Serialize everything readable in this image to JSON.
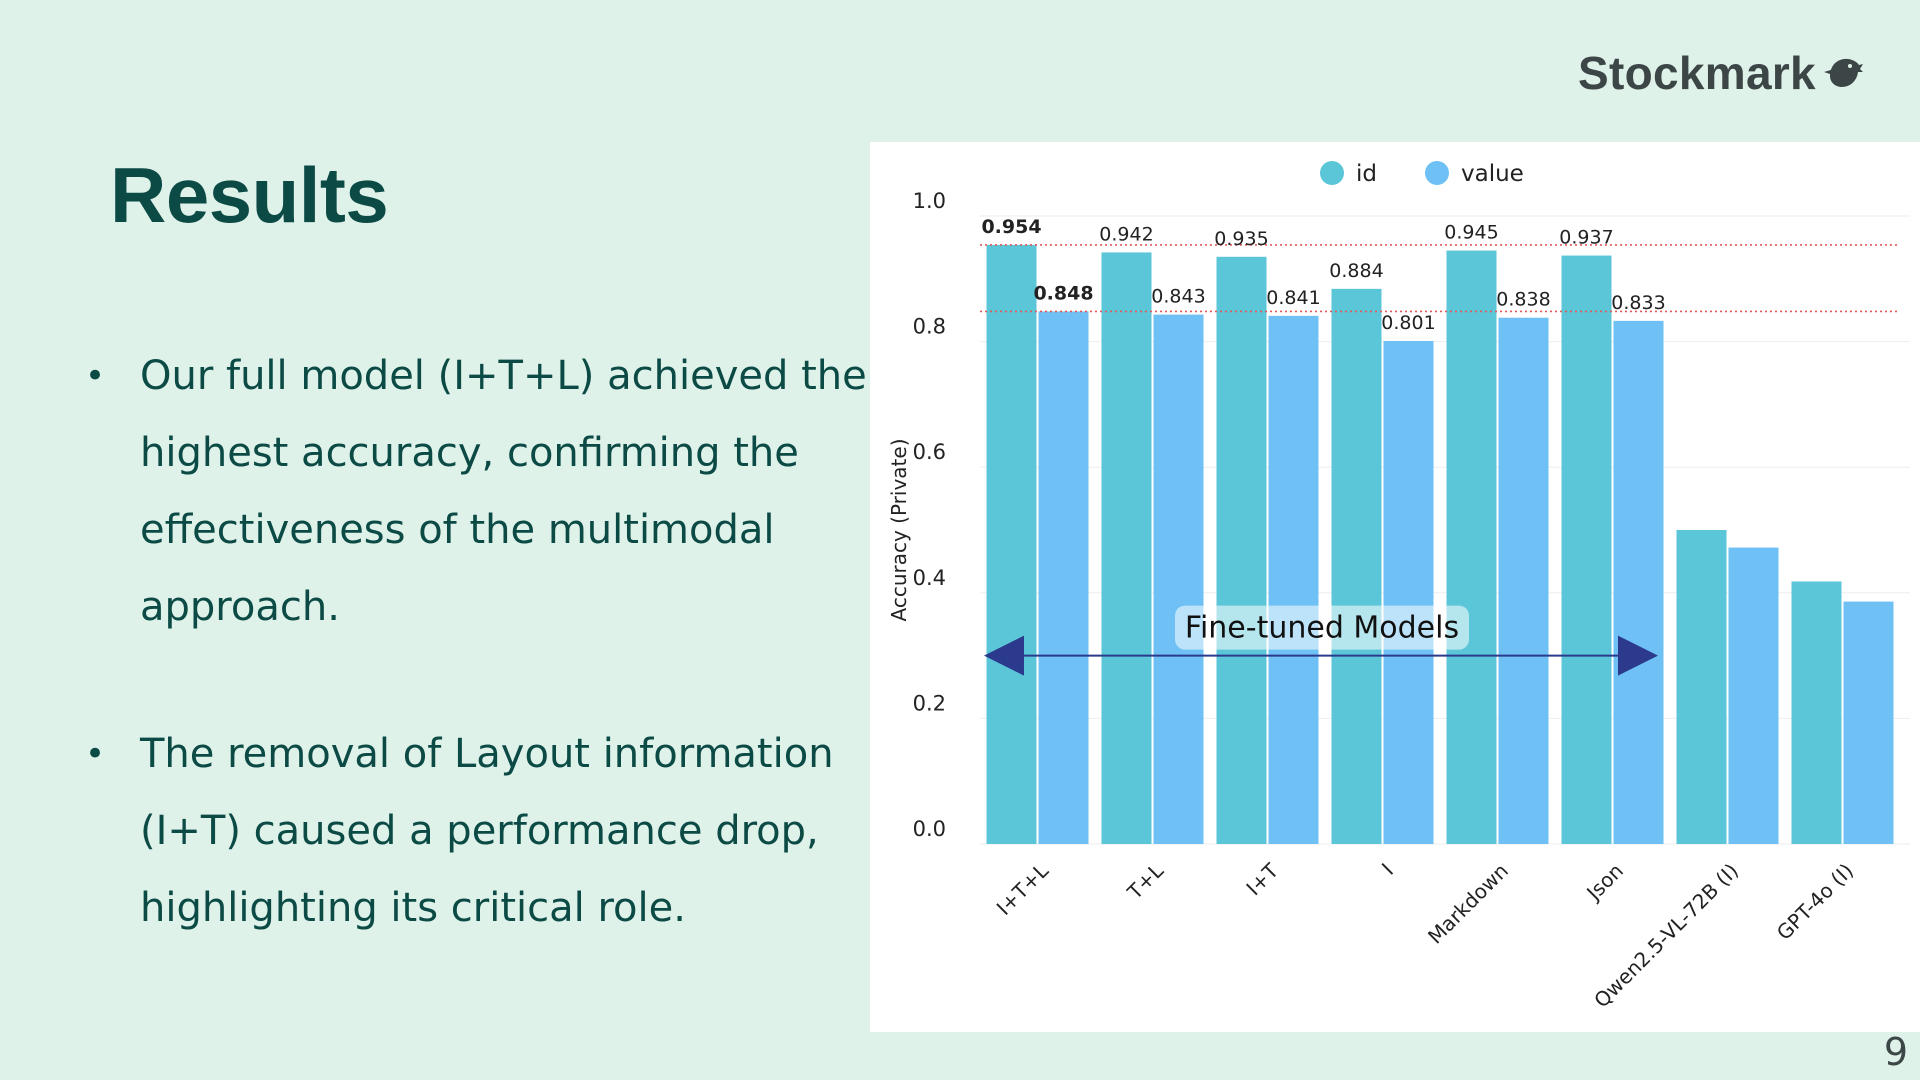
{
  "logo": {
    "text": "Stockmark",
    "icon": "stockmark-bird-icon"
  },
  "slide": {
    "title": "Results",
    "bullets": [
      "Our full model (I+T+L) achieved the highest accuracy, confirming the effectiveness of the multimodal approach.",
      "The removal of Layout information (I+T) caused a performance drop, highlighting its critical role."
    ],
    "page_number": "9"
  },
  "chart_data": {
    "type": "bar",
    "categories": [
      "I+T+L",
      "T+L",
      "I+T",
      "I",
      "Markdown",
      "Json",
      "Qwen2.5-VL-72B (I)",
      "GPT-4o (I)"
    ],
    "series": [
      {
        "name": "id",
        "color": "#5bc6d8",
        "values": [
          0.954,
          0.942,
          0.935,
          0.884,
          0.945,
          0.937,
          0.5,
          0.418
        ]
      },
      {
        "name": "value",
        "color": "#6ec0f5",
        "values": [
          0.848,
          0.843,
          0.841,
          0.801,
          0.838,
          0.833,
          0.472,
          0.386
        ]
      }
    ],
    "labeled_series_values": {
      "id": [
        "0.954",
        "0.942",
        "0.935",
        "0.884",
        "0.945",
        "0.937"
      ],
      "value": [
        "0.848",
        "0.843",
        "0.841",
        "0.801",
        "0.838",
        "0.833"
      ]
    },
    "bold_labels": [
      "0.954",
      "0.848"
    ],
    "ylabel": "Accuracy (Private)",
    "xlabel": "",
    "ylim": [
      0,
      1.0
    ],
    "yticks": [
      "0.0",
      "0.2",
      "0.4",
      "0.6",
      "0.8",
      "1.0"
    ],
    "reference_lines": [
      0.954,
      0.848
    ],
    "reference_line_color": "#e05a5a",
    "annotation": {
      "text": "Fine-tuned Models",
      "y": 0.3,
      "from_category": 0,
      "to_category": 5,
      "arrow_color": "#2b3a8c"
    },
    "legend": {
      "position": "top-center"
    },
    "grid": true
  }
}
